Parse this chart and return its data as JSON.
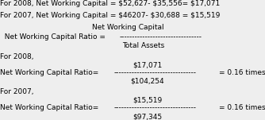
{
  "line1": "For 2008, Net Working Capital = $52,627- $35,556= $17,071",
  "line2": "For 2007, Net Working Capital = $46207- $30,688 = $15,519",
  "formula_left": "  Net Working Capital Ratio = ",
  "formula_numerator": "Net Working Capital",
  "formula_dashes": "--------------------------------",
  "formula_denominator": "Total Assets",
  "for2008": "For 2008,",
  "num2008": "$17,071",
  "ratio2008_left": "Net Working Capital Ratio= ",
  "ratio2008_dashes": "--------------------------------",
  "ratio2008_result": "= 0.16 times",
  "den2008": "$104,254",
  "for2007": "For 2007,",
  "num2007": "$15,519",
  "ratio2007_left": "Net Working Capital Ratio= ",
  "ratio2007_dashes": "--------------------------------",
  "ratio2007_result": "= 0.16 times",
  "den2007": "$97,345",
  "bg_color": "#eeeeee",
  "text_color": "#000000",
  "font_size": 6.5
}
